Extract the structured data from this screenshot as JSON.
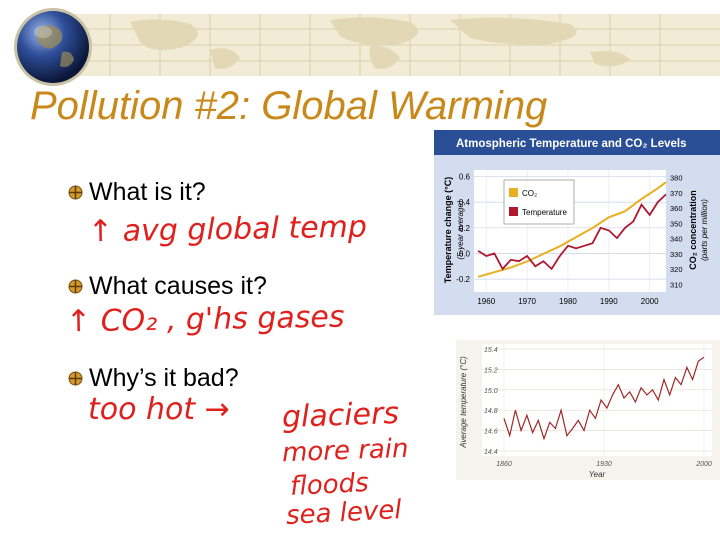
{
  "slide": {
    "title": "Pollution #2:  Global Warming",
    "bullets": [
      "What is it?",
      "What causes it?",
      "Why’s it bad?"
    ],
    "handwriting": [
      "↑ avg global temp",
      "↑ CO₂ , g'hs gases",
      "too hot →",
      "glaciers",
      "more rain",
      "floods",
      "sea level"
    ]
  },
  "colors": {
    "title": "#c8891a",
    "ink": "#e0201c",
    "banner": "#f2ecd6",
    "chart1_header": "#2a4f96",
    "chart1_bg": "#d4ddf0",
    "co2_line": "#e8b020",
    "temp_line": "#b01830",
    "chart2_line": "#a02828"
  },
  "chart_data": [
    {
      "type": "line",
      "title": "Atmospheric Temperature and CO₂ Levels",
      "ylabel": "Temperature change (°C)",
      "ylabel_note": "(5-year average)",
      "y2label": "CO₂ concentration",
      "y2label_note": "(parts per million)",
      "x_ticks": [
        "1960",
        "1970",
        "1980",
        "1990",
        "2000"
      ],
      "y_ticks": [
        "0.6",
        "0.4",
        "0.2",
        "0.0",
        "-0.2"
      ],
      "y2_ticks": [
        "380",
        "370",
        "360",
        "350",
        "340",
        "330",
        "320",
        "310"
      ],
      "ylim": [
        -0.3,
        0.65
      ],
      "y2lim": [
        305,
        385
      ],
      "xlim": [
        1957,
        2004
      ],
      "legend": "top-left",
      "series": [
        {
          "name": "CO₂",
          "axis": "right",
          "x": [
            1958,
            1962,
            1966,
            1970,
            1974,
            1978,
            1982,
            1986,
            1990,
            1994,
            1998,
            2002,
            2004
          ],
          "values": [
            315,
            318,
            321,
            325,
            330,
            335,
            341,
            347,
            354,
            358,
            366,
            373,
            377
          ]
        },
        {
          "name": "Temperature",
          "axis": "left",
          "x": [
            1958,
            1960,
            1962,
            1964,
            1966,
            1968,
            1970,
            1972,
            1974,
            1976,
            1978,
            1980,
            1982,
            1984,
            1986,
            1988,
            1990,
            1992,
            1994,
            1996,
            1998,
            2000,
            2002,
            2004
          ],
          "values": [
            0.02,
            -0.02,
            0.0,
            -0.12,
            -0.05,
            -0.06,
            -0.02,
            -0.1,
            -0.06,
            -0.12,
            -0.02,
            0.06,
            0.04,
            0.06,
            0.08,
            0.2,
            0.18,
            0.12,
            0.2,
            0.25,
            0.38,
            0.3,
            0.4,
            0.46
          ]
        }
      ]
    },
    {
      "type": "line",
      "ylabel": "Average temperature (°C)",
      "xlabel": "Year",
      "x_ticks": [
        "1860",
        "1930",
        "2000"
      ],
      "y_ticks": [
        "15.4",
        "15.2",
        "15.0",
        "14.8",
        "14.6",
        "14.4"
      ],
      "ylim": [
        14.35,
        15.45
      ],
      "xlim": [
        1860,
        2000
      ],
      "series": [
        {
          "x": [
            1860,
            1864,
            1868,
            1872,
            1876,
            1880,
            1884,
            1888,
            1892,
            1896,
            1900,
            1904,
            1908,
            1912,
            1916,
            1920,
            1924,
            1928,
            1932,
            1936,
            1940,
            1944,
            1948,
            1952,
            1956,
            1960,
            1964,
            1968,
            1972,
            1976,
            1980,
            1984,
            1988,
            1992,
            1996,
            2000
          ],
          "values": [
            14.72,
            14.55,
            14.8,
            14.6,
            14.75,
            14.58,
            14.7,
            14.52,
            14.68,
            14.62,
            14.8,
            14.55,
            14.62,
            14.7,
            14.6,
            14.8,
            14.72,
            14.9,
            14.82,
            14.95,
            15.05,
            14.92,
            14.98,
            14.88,
            15.02,
            14.95,
            15.0,
            14.9,
            15.1,
            14.95,
            15.12,
            15.05,
            15.22,
            15.1,
            15.28,
            15.32
          ]
        }
      ]
    }
  ]
}
